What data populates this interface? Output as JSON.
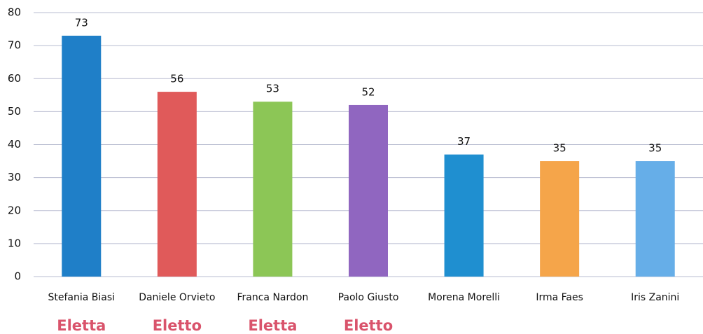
{
  "chart_data": {
    "type": "bar",
    "categories": [
      "Stefania Biasi",
      "Daniele Orvieto",
      "Franca Nardon",
      "Paolo Giusto",
      "Morena Morelli",
      "Irma Faes",
      "Iris Zanini"
    ],
    "values": [
      73,
      56,
      53,
      52,
      37,
      35,
      35
    ],
    "colors": [
      "#1f7fc8",
      "#e05a5a",
      "#8cc656",
      "#9066c0",
      "#1f8fd0",
      "#f5a54a",
      "#66aee8"
    ],
    "annotations": [
      "Eletta",
      "Eletto",
      "Eletta",
      "Eletto",
      null,
      null,
      null
    ],
    "ylim": [
      0,
      80
    ],
    "yticks": [
      0,
      10,
      20,
      30,
      40,
      50,
      60,
      70,
      80
    ],
    "grid": true
  }
}
